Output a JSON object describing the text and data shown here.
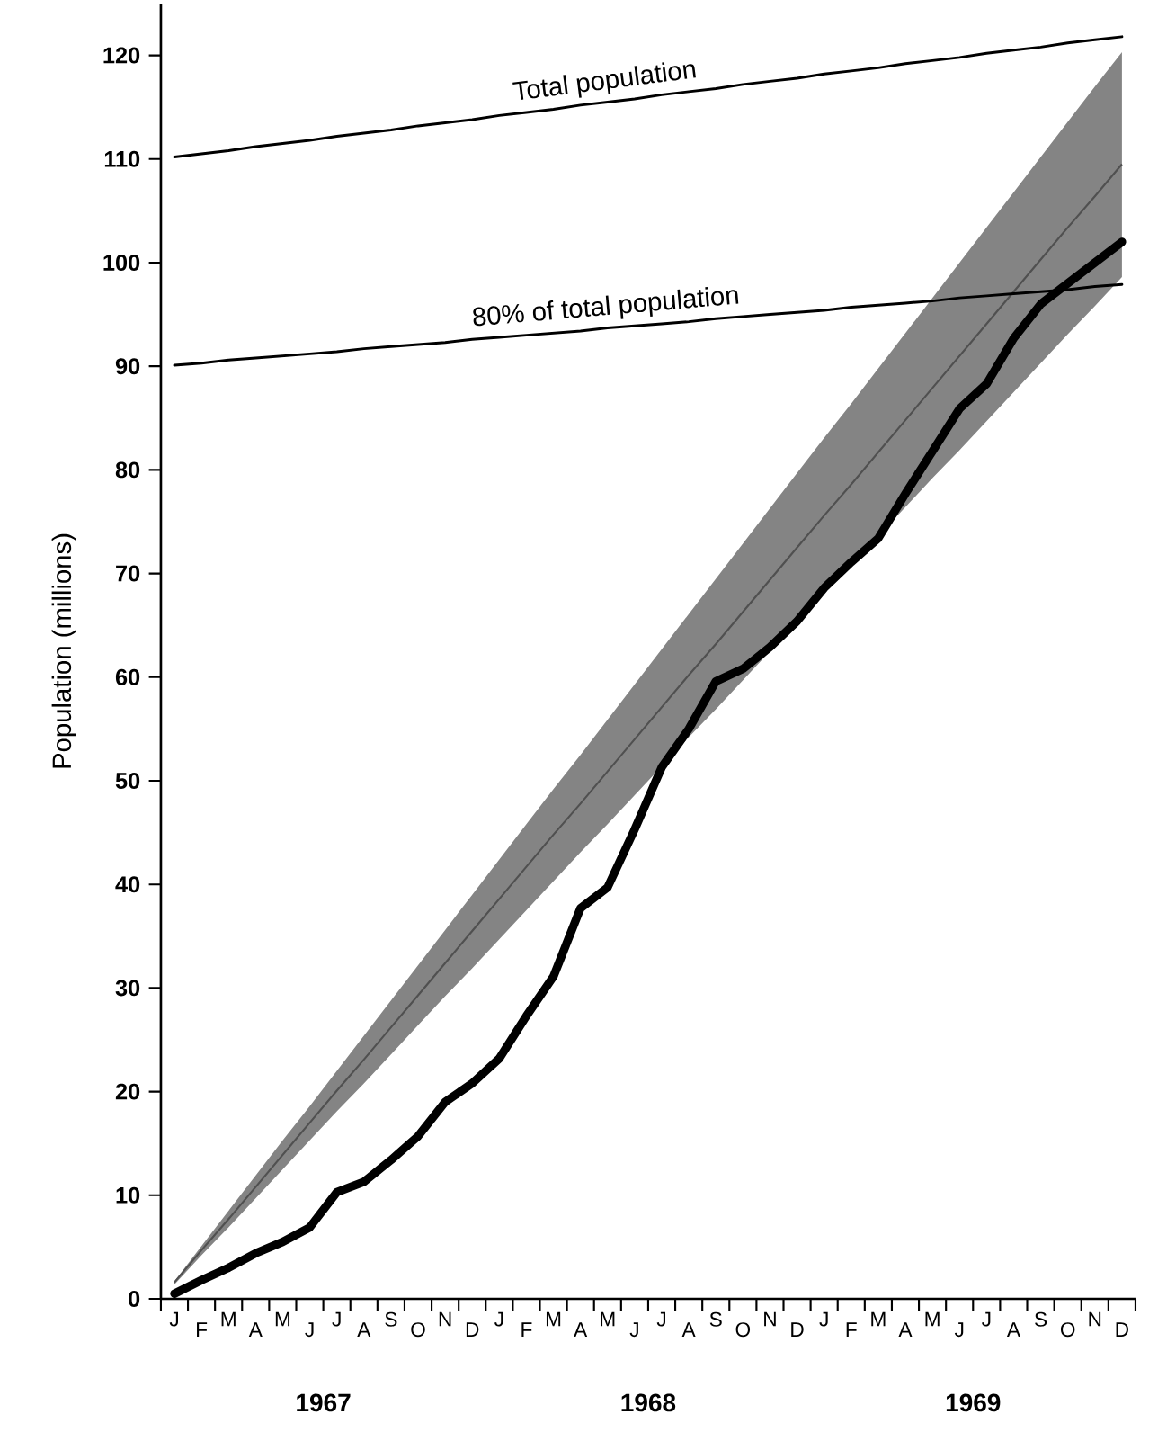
{
  "chart_data": {
    "type": "line",
    "ylabel": "Population (millions)",
    "ylim": [
      0,
      125
    ],
    "yticks": [
      0,
      10,
      20,
      30,
      40,
      50,
      60,
      70,
      80,
      90,
      100,
      110,
      120
    ],
    "categories": [
      "J",
      "F",
      "M",
      "A",
      "M",
      "J",
      "J",
      "A",
      "S",
      "O",
      "N",
      "D",
      "J",
      "F",
      "M",
      "A",
      "M",
      "J",
      "J",
      "A",
      "S",
      "O",
      "N",
      "D",
      "J",
      "F",
      "M",
      "A",
      "M",
      "J",
      "J",
      "A",
      "S",
      "O",
      "N",
      "D"
    ],
    "series": [
      {
        "color": "#505050",
        "values": [
          1.6,
          4.7,
          7.7,
          10.8,
          13.9,
          17.0,
          20.1,
          23.1,
          26.2,
          29.3,
          32.4,
          35.5,
          38.6,
          41.7,
          44.8,
          47.8,
          50.9,
          54.0,
          57.1,
          60.2,
          63.2,
          66.3,
          69.4,
          72.5,
          75.6,
          78.6,
          81.7,
          84.8,
          87.9,
          91.0,
          94.1,
          97.2,
          100.3,
          103.4,
          106.4,
          109.5
        ],
        "lower": [
          1.4,
          4.2,
          6.9,
          9.7,
          12.5,
          15.3,
          18.1,
          20.8,
          23.6,
          26.4,
          29.2,
          31.9,
          34.7,
          37.5,
          40.3,
          43.1,
          45.8,
          48.6,
          51.4,
          54.2,
          56.9,
          59.7,
          62.5,
          65.3,
          68.1,
          70.8,
          73.6,
          76.4,
          79.2,
          81.9,
          84.7,
          87.5,
          90.3,
          93.1,
          95.8,
          98.6
        ],
        "upper": [
          1.7,
          5.1,
          8.5,
          11.9,
          15.3,
          18.6,
          22.0,
          25.4,
          28.8,
          32.2,
          35.6,
          39.0,
          42.4,
          45.8,
          49.2,
          52.5,
          55.9,
          59.3,
          62.7,
          66.1,
          69.5,
          72.9,
          76.3,
          79.7,
          83.1,
          86.4,
          89.8,
          93.2,
          96.6,
          100.0,
          103.4,
          106.8,
          110.2,
          113.6,
          117.0,
          120.3
        ]
      },
      {
        "name": "Total population",
        "color": "#000000",
        "values": [
          110.2,
          110.5,
          110.8,
          111.2,
          111.5,
          111.8,
          112.2,
          112.5,
          112.8,
          113.2,
          113.5,
          113.8,
          114.2,
          114.5,
          114.8,
          115.2,
          115.5,
          115.8,
          116.2,
          116.5,
          116.8,
          117.2,
          117.5,
          117.8,
          118.2,
          118.5,
          118.8,
          119.2,
          119.5,
          119.8,
          120.2,
          120.5,
          120.8,
          121.2,
          121.5,
          121.8
        ]
      },
      {
        "name": "80% of total population",
        "color": "#000000",
        "values": [
          90.1,
          90.3,
          90.6,
          90.8,
          91.0,
          91.2,
          91.4,
          91.7,
          91.9,
          92.1,
          92.3,
          92.6,
          92.8,
          93.0,
          93.2,
          93.4,
          93.7,
          93.9,
          94.1,
          94.3,
          94.6,
          94.8,
          95.0,
          95.2,
          95.4,
          95.7,
          95.9,
          96.1,
          96.3,
          96.6,
          96.8,
          97.0,
          97.2,
          97.4,
          97.7,
          97.9
        ]
      },
      {
        "color": "#000000",
        "values": [
          0.5,
          1.8,
          3.0,
          4.4,
          5.5,
          6.9,
          10.3,
          11.3,
          13.4,
          15.7,
          19.0,
          20.8,
          23.2,
          27.3,
          31.1,
          37.7,
          39.7,
          45.3,
          51.3,
          55.0,
          59.6,
          60.8,
          62.9,
          65.4,
          68.6,
          71.1,
          73.4,
          77.7,
          81.8,
          85.9,
          88.3,
          92.7,
          96.0,
          98.0,
          100.0,
          102.0
        ]
      }
    ],
    "annotations": [
      "1967",
      "1968",
      "1969"
    ]
  }
}
